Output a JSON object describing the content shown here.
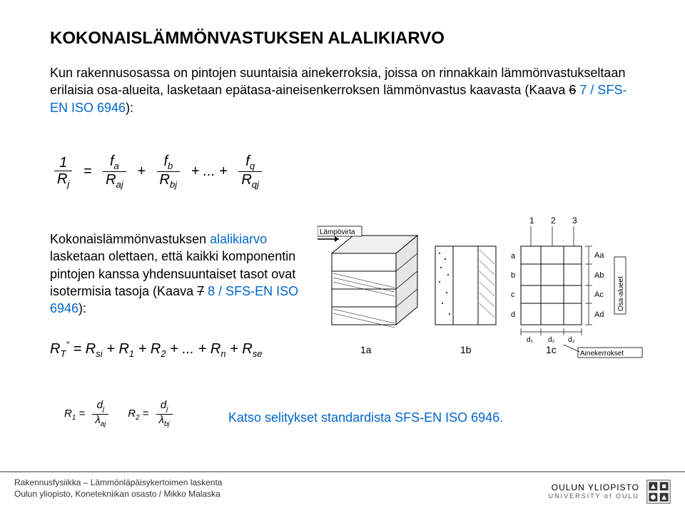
{
  "title": "KOKONAISLÄMMÖNVASTUKSEN ALALIKIARVO",
  "intro_parts": {
    "p1": "Kun rakennusosassa on pintojen suuntaisia ainekerroksia, joissa on rinnakkain lämmönvastukseltaan erilaisia osa-alueita, lasketaan epätasa-aineisenkerroksen lämmönvastus kaavasta (Kaava ",
    "strike1": "6",
    "blue1": " 7 / SFS-EN ISO 6946",
    "p2": "):"
  },
  "formula1": {
    "lhs_num": "1",
    "lhs_den": "R<span class='sub'>j</span>",
    "t1_num": "f<span class='sub'>a</span>",
    "t1_den": "R<span class='sub'>aj</span>",
    "t2_num": "f<span class='sub'>b</span>",
    "t2_den": "R<span class='sub'>bj</span>",
    "dots": "+ ... +",
    "tq_num": "f<span class='sub'>q</span>",
    "tq_den": "R<span class='sub'>qj</span>"
  },
  "body2_parts": {
    "p1": "Kokonaislämmönvastuksen ",
    "blue1": "alalikiarvo",
    "p2": " lasketaan olettaen, että kaikki komponentin pintojen kanssa yhdensuuntaiset tasot ovat isotermisia tasoja (Kaava ",
    "strike1": "7",
    "blue2": " 8 / SFS-EN ISO 6946",
    "p3": "):"
  },
  "formula2": {
    "lhs": "R<span class='sub'>T</span><span class='sup'>″</span>",
    "rhs": " = R<span class='sub'>si</span> + R<span class='sub'>1</span> + R<span class='sub'>2</span> + ... + R<span class='sub'>n</span> + R<span class='sub'>se</span>"
  },
  "smallformula": {
    "r1_lhs": "R<span class='sub'>1</span> =",
    "r1_num": "d<span class='sub'>j</span>",
    "r1_den": "λ<span class='sub'>aj</span>",
    "r2_lhs": "R<span class='sub'>2</span> =",
    "r2_num": "d<span class='sub'>j</span>",
    "r2_den": "λ<span class='sub'>bj</span>"
  },
  "katso": "Katso selitykset standardista SFS-EN ISO 6946.",
  "diagram_labels": {
    "lampovirta": "Lämpövirta",
    "osaalueet": "Osa-alueet",
    "ainekerrokset": "Ainekerrokset",
    "c123": [
      "1",
      "2",
      "3"
    ],
    "rows": [
      "a",
      "b",
      "c",
      "d"
    ],
    "A_rows": [
      "Aa",
      "Ab",
      "Ac",
      "Ad"
    ],
    "d_cols": [
      "d₁",
      "d₂",
      "d₃"
    ],
    "panels": [
      "1a",
      "1b",
      "1c"
    ]
  },
  "footer": {
    "line1": "Rakennusfysiikka – Lämmönläpäisykertoimen laskenta",
    "line2": "Oulun yliopisto, Konetekniikan osasto / Mikko Malaska",
    "uni_fi": "OULUN YLIOPISTO",
    "uni_en": "UNIVERSITY of OULU"
  },
  "colors": {
    "blue": "#0066cc",
    "rule": "#999999"
  }
}
